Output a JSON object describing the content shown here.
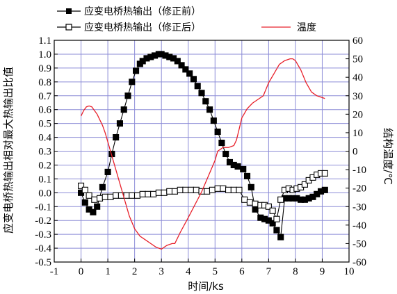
{
  "chart_data": {
    "type": "line",
    "xlabel": "时间/ks",
    "ylabel_left": "应变电桥热输出相对最大热输出比值",
    "ylabel_right": "结构温度/℃",
    "xlim": [
      -1,
      10
    ],
    "ylim_left": [
      -0.5,
      1.1
    ],
    "ylim_right": [
      -60,
      60
    ],
    "x_ticks": [
      "-1",
      "0",
      "1",
      "2",
      "3",
      "4",
      "5",
      "6",
      "7",
      "8",
      "9",
      "10"
    ],
    "y_left_ticks": [
      "-0.5",
      "-0.4",
      "-0.3",
      "-0.2",
      "-0.1",
      "0.0",
      "0.1",
      "0.2",
      "0.3",
      "0.4",
      "0.5",
      "0.6",
      "0.7",
      "0.8",
      "0.9",
      "1.0",
      "1.1"
    ],
    "y_right_ticks": [
      "-60",
      "-50",
      "-40",
      "-30",
      "-20",
      "-10",
      "0",
      "10",
      "20",
      "30",
      "40",
      "50",
      "60"
    ],
    "grid": true,
    "grid_color": "#8B8BD6",
    "legend_position": "top",
    "series": [
      {
        "name": "应变电桥热输出（修正前）",
        "axis": "left",
        "marker": "filled-square",
        "color": "#000000",
        "x": [
          0,
          0.15,
          0.3,
          0.45,
          0.6,
          0.8,
          1.0,
          1.15,
          1.3,
          1.45,
          1.6,
          1.75,
          1.9,
          2.05,
          2.2,
          2.3,
          2.45,
          2.6,
          2.75,
          2.9,
          3.0,
          3.15,
          3.3,
          3.45,
          3.6,
          3.75,
          3.9,
          4.05,
          4.2,
          4.35,
          4.5,
          4.65,
          4.8,
          4.95,
          5.1,
          5.25,
          5.4,
          5.55,
          5.7,
          5.85,
          6.05,
          6.2,
          6.35,
          6.5,
          6.7,
          6.85,
          7.0,
          7.15,
          7.3,
          7.45,
          7.6,
          7.75,
          7.9,
          8.05,
          8.2,
          8.35,
          8.5,
          8.65,
          8.8,
          8.95,
          9.1
        ],
        "y": [
          0.0,
          -0.07,
          -0.12,
          -0.14,
          -0.1,
          0.04,
          0.15,
          0.28,
          0.4,
          0.5,
          0.6,
          0.7,
          0.8,
          0.88,
          0.93,
          0.95,
          0.97,
          0.98,
          0.99,
          1.0,
          1.0,
          0.99,
          0.98,
          0.97,
          0.95,
          0.92,
          0.89,
          0.86,
          0.82,
          0.77,
          0.72,
          0.66,
          0.6,
          0.52,
          0.44,
          0.36,
          0.28,
          0.22,
          0.2,
          0.19,
          0.17,
          0.12,
          0.04,
          -0.12,
          -0.18,
          -0.19,
          -0.2,
          -0.22,
          -0.27,
          -0.32,
          -0.04,
          -0.04,
          -0.04,
          -0.04,
          -0.05,
          -0.05,
          -0.04,
          -0.03,
          -0.01,
          0.01,
          0.02
        ]
      },
      {
        "name": "应变电桥热输出（修正后）",
        "axis": "left",
        "marker": "open-square",
        "color": "#000000",
        "x": [
          0,
          0.15,
          0.3,
          0.5,
          0.7,
          0.9,
          1.1,
          1.3,
          1.5,
          1.7,
          1.9,
          2.1,
          2.3,
          2.5,
          2.7,
          2.9,
          3.1,
          3.3,
          3.5,
          3.7,
          3.9,
          4.1,
          4.3,
          4.5,
          4.7,
          4.9,
          5.1,
          5.3,
          5.5,
          5.7,
          5.9,
          6.1,
          6.3,
          6.5,
          6.7,
          6.85,
          7.0,
          7.15,
          7.3,
          7.45,
          7.6,
          7.75,
          7.9,
          8.05,
          8.2,
          8.35,
          8.5,
          8.65,
          8.8,
          8.95,
          9.1
        ],
        "y": [
          0.05,
          0.02,
          -0.02,
          -0.05,
          -0.04,
          -0.03,
          -0.03,
          -0.02,
          -0.02,
          -0.02,
          -0.02,
          -0.02,
          -0.01,
          -0.01,
          -0.01,
          0.0,
          0.0,
          0.01,
          0.01,
          0.02,
          0.02,
          0.02,
          0.02,
          0.01,
          0.01,
          0.02,
          0.03,
          0.03,
          0.02,
          0.02,
          0.02,
          -0.05,
          -0.07,
          -0.08,
          -0.09,
          -0.09,
          -0.1,
          -0.13,
          -0.19,
          -0.05,
          0.02,
          0.03,
          0.02,
          0.03,
          0.04,
          0.06,
          0.09,
          0.11,
          0.13,
          0.14,
          0.14
        ]
      },
      {
        "name": "温度",
        "axis": "right",
        "marker": "none",
        "color": "#E8202A",
        "x": [
          0,
          0.1,
          0.2,
          0.3,
          0.4,
          0.5,
          0.6,
          0.7,
          0.8,
          0.9,
          1.0,
          1.2,
          1.4,
          1.6,
          1.8,
          2.0,
          2.2,
          2.4,
          2.6,
          2.8,
          3.0,
          3.2,
          3.4,
          3.5,
          3.7,
          4.0,
          4.5,
          5.0,
          5.1,
          5.3,
          5.5,
          5.7,
          5.8,
          5.9,
          6.0,
          6.2,
          6.4,
          6.6,
          6.8,
          7.0,
          7.2,
          7.4,
          7.6,
          7.8,
          7.9,
          8.0,
          8.2,
          8.4,
          8.6,
          8.8,
          9.0,
          9.1
        ],
        "y": [
          19,
          22,
          24,
          24.5,
          24,
          22,
          20,
          17,
          14,
          10,
          5,
          -5,
          -15,
          -25,
          -35,
          -42,
          -46,
          -48,
          -50,
          -52,
          -53,
          -51,
          -50,
          -50,
          -44,
          -36,
          -22,
          -5,
          0,
          2,
          2,
          3,
          6,
          12,
          18,
          23,
          26,
          28,
          30,
          37,
          42,
          47,
          49,
          50,
          50,
          49,
          44,
          37,
          32,
          30,
          29,
          28.5
        ]
      }
    ]
  }
}
